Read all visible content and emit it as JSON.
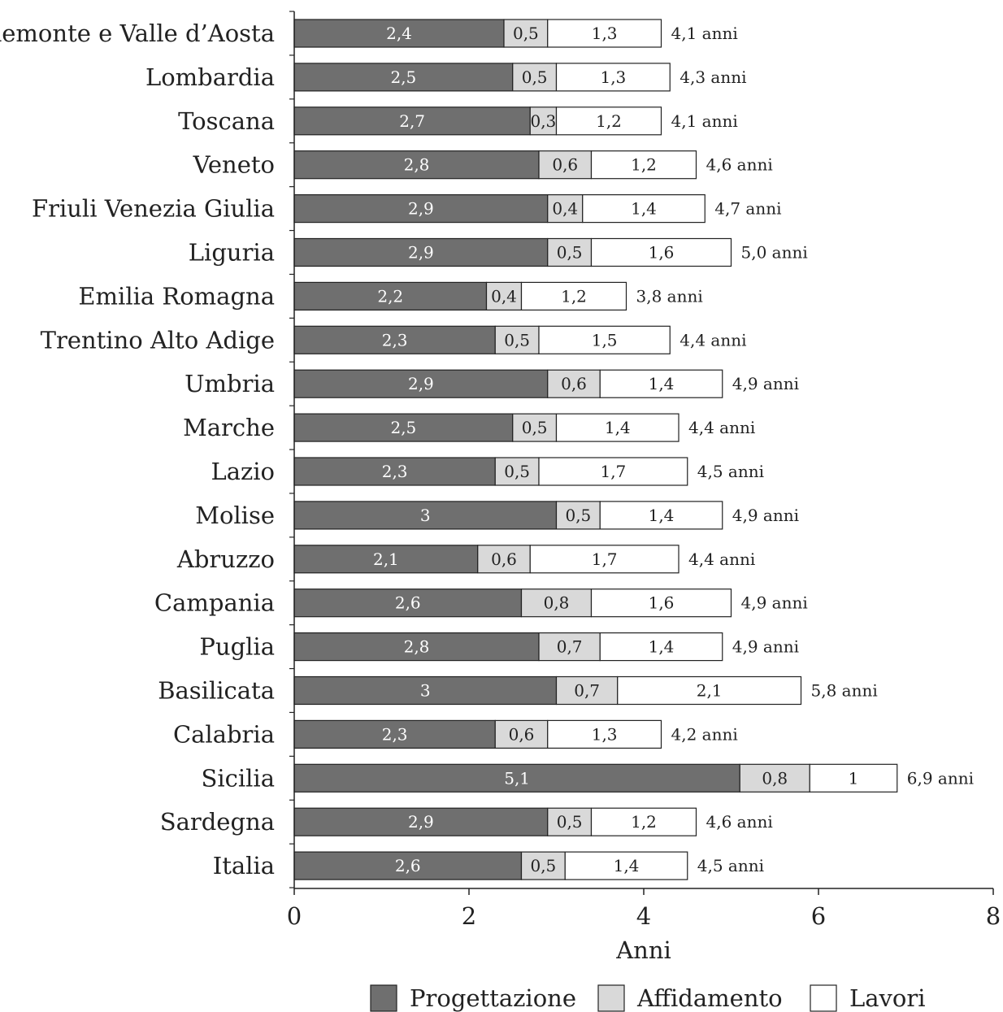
{
  "chart_data": {
    "type": "bar",
    "orientation": "horizontal",
    "stacked": true,
    "title": "",
    "xlabel": "Anni",
    "ylabel": "",
    "xlim": [
      0,
      8
    ],
    "xticks": [
      0,
      2,
      4,
      6,
      8
    ],
    "grid": false,
    "legend_position": "bottom",
    "total_suffix": "anni",
    "categories": [
      "Piemonte e Valle d’Aosta",
      "Lombardia",
      "Toscana",
      "Veneto",
      "Friuli Venezia Giulia",
      "Liguria",
      "Emilia Romagna",
      "Trentino Alto Adige",
      "Umbria",
      "Marche",
      "Lazio",
      "Molise",
      "Abruzzo",
      "Campania",
      "Puglia",
      "Basilicata",
      "Calabria",
      "Sicilia",
      "Sardegna",
      "Italia"
    ],
    "series": [
      {
        "name": "Progettazione",
        "color": "#6f6f6f",
        "values": [
          2.4,
          2.5,
          2.7,
          2.8,
          2.9,
          2.9,
          2.2,
          2.3,
          2.9,
          2.5,
          2.3,
          3,
          2.1,
          2.6,
          2.8,
          3,
          2.3,
          5.1,
          2.9,
          2.6
        ],
        "value_labels": [
          "2,4",
          "2,5",
          "2,7",
          "2,8",
          "2,9",
          "2,9",
          "2,2",
          "2,3",
          "2,9",
          "2,5",
          "2,3",
          "3",
          "2,1",
          "2,6",
          "2,8",
          "3",
          "2,3",
          "5,1",
          "2,9",
          "2,6"
        ]
      },
      {
        "name": "Affidamento",
        "color": "#d9d9d9",
        "values": [
          0.5,
          0.5,
          0.3,
          0.6,
          0.4,
          0.5,
          0.4,
          0.5,
          0.6,
          0.5,
          0.5,
          0.5,
          0.6,
          0.8,
          0.7,
          0.7,
          0.6,
          0.8,
          0.5,
          0.5
        ],
        "value_labels": [
          "0,5",
          "0,5",
          "0,3",
          "0,6",
          "0,4",
          "0,5",
          "0,4",
          "0,5",
          "0,6",
          "0,5",
          "0,5",
          "0,5",
          "0,6",
          "0,8",
          "0,7",
          "0,7",
          "0,6",
          "0,8",
          "0,5",
          "0,5"
        ]
      },
      {
        "name": "Lavori",
        "color": "#ffffff",
        "values": [
          1.3,
          1.3,
          1.2,
          1.2,
          1.4,
          1.6,
          1.2,
          1.5,
          1.4,
          1.4,
          1.7,
          1.4,
          1.7,
          1.6,
          1.4,
          2.1,
          1.3,
          1,
          1.2,
          1.4
        ],
        "value_labels": [
          "1,3",
          "1,3",
          "1,2",
          "1,2",
          "1,4",
          "1,6",
          "1,2",
          "1,5",
          "1,4",
          "1,4",
          "1,7",
          "1,4",
          "1,7",
          "1,6",
          "1,4",
          "2,1",
          "1,3",
          "1",
          "1,2",
          "1,4"
        ]
      }
    ],
    "totals": [
      4.1,
      4.3,
      4.1,
      4.6,
      4.7,
      5.0,
      3.8,
      4.4,
      4.9,
      4.4,
      4.5,
      4.9,
      4.4,
      4.9,
      4.9,
      5.8,
      4.2,
      6.9,
      4.6,
      4.5
    ],
    "total_labels": [
      "4,1 anni",
      "4,3 anni",
      "4,1 anni",
      "4,6 anni",
      "4,7 anni",
      "5,0 anni",
      "3,8 anni",
      "4,4 anni",
      "4,9 anni",
      "4,4 anni",
      "4,5 anni",
      "4,9 anni",
      "4,4 anni",
      "4,9 anni",
      "4,9 anni",
      "5,8 anni",
      "4,2 anni",
      "6,9 anni",
      "4,6 anni",
      "4,5 anni"
    ]
  }
}
